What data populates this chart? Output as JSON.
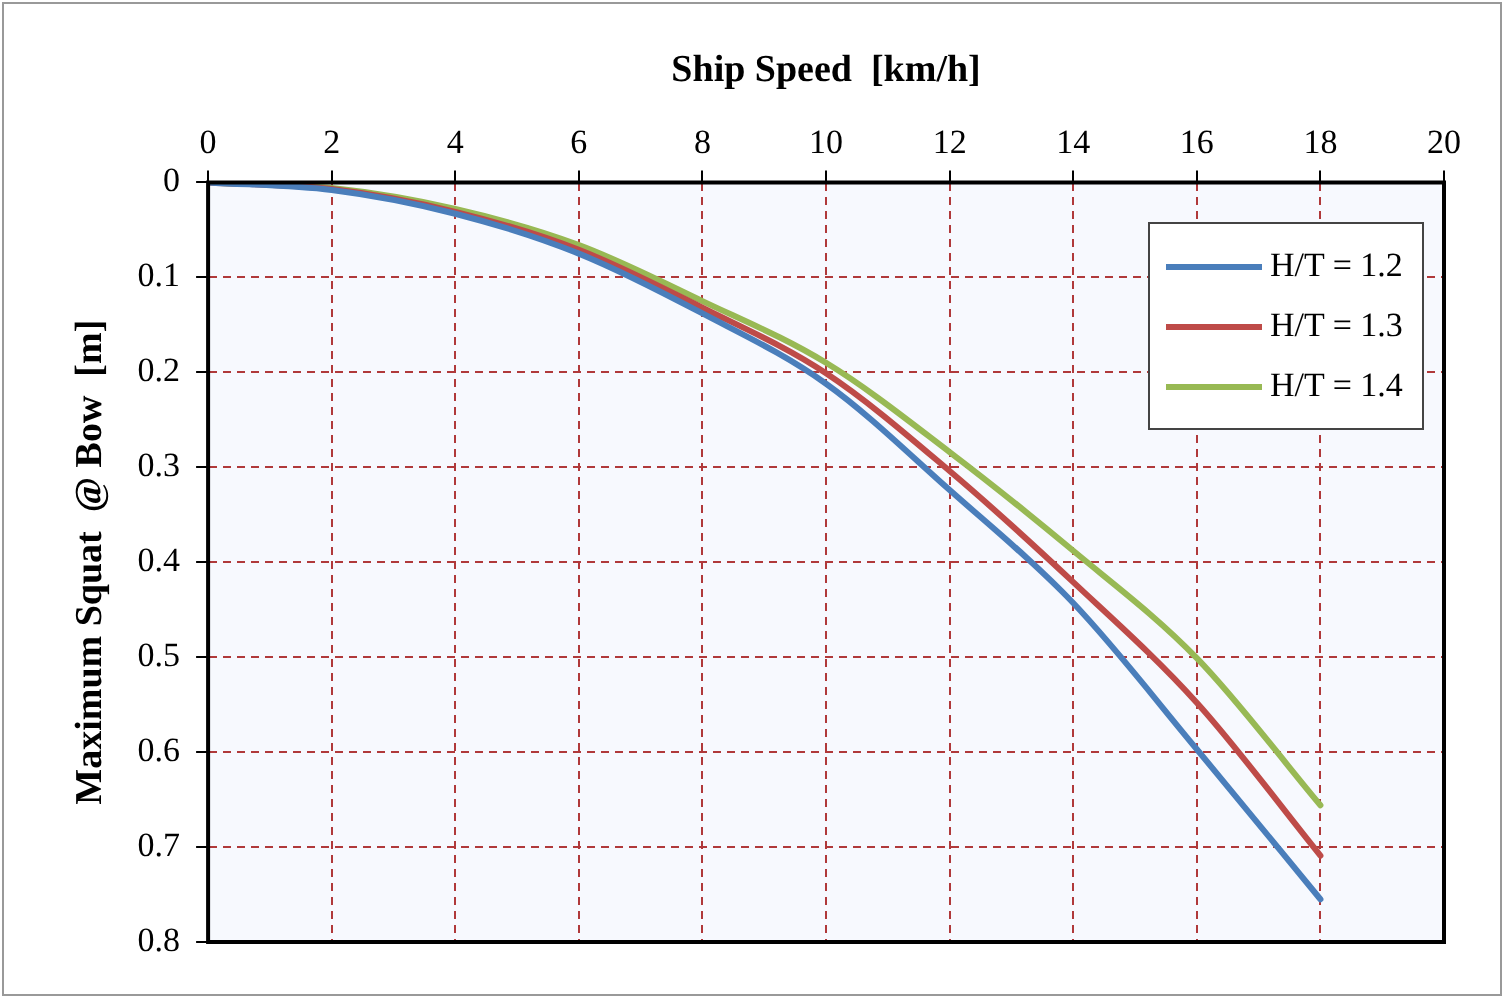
{
  "chart_data": {
    "type": "line",
    "xlabel": "Ship Speed  [km/h]",
    "ylabel": "Maximum Squat  @ Bow  [m]",
    "x": [
      0,
      2,
      4,
      6,
      8,
      10,
      12,
      14,
      16,
      18
    ],
    "series": [
      {
        "name": "H/T = 1.2",
        "color": "#4a7ebb",
        "values": [
          0,
          0.008,
          0.033,
          0.075,
          0.138,
          0.212,
          0.324,
          0.443,
          0.597,
          0.755
        ]
      },
      {
        "name": "H/T = 1.3",
        "color": "#be4b48",
        "values": [
          0,
          0.007,
          0.031,
          0.071,
          0.132,
          0.201,
          0.304,
          0.421,
          0.548,
          0.709
        ]
      },
      {
        "name": "H/T = 1.4",
        "color": "#98b954",
        "values": [
          0,
          0.006,
          0.028,
          0.066,
          0.125,
          0.19,
          0.284,
          0.388,
          0.501,
          0.656
        ]
      }
    ],
    "xlim": [
      0,
      20
    ],
    "xticks": [
      0,
      2,
      4,
      6,
      8,
      10,
      12,
      14,
      16,
      18,
      20
    ],
    "ylim": [
      0.8,
      0
    ],
    "yticks": [
      0,
      0.1,
      0.2,
      0.3,
      0.4,
      0.5,
      0.6,
      0.7,
      0.8
    ],
    "grid": true,
    "legend": "top right",
    "marker": "none",
    "line_style": "solid"
  }
}
